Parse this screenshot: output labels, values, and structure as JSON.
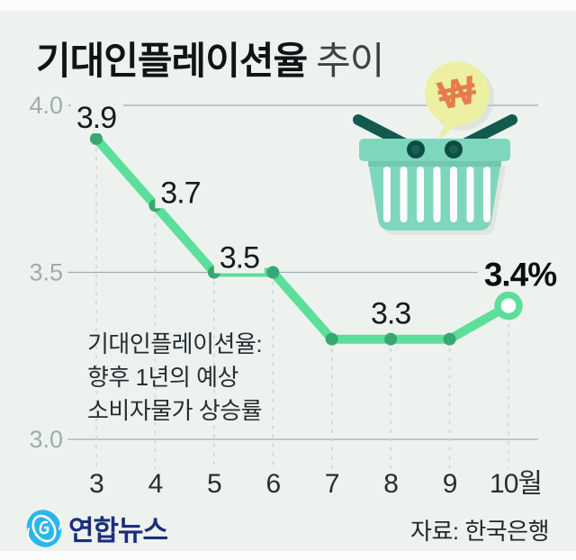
{
  "title": {
    "main": "기대인플레이션율",
    "suffix": "추이"
  },
  "annotation": {
    "line1": "기대인플레이션율:",
    "line2": "향후 1년의 예상",
    "line3": "소비자물가 상승률"
  },
  "illustration": {
    "currency_symbol": "₩"
  },
  "footer": {
    "logo_text": "연합뉴스",
    "source": "자료: 한국은행"
  },
  "chart_data": {
    "type": "line",
    "title": "기대인플레이션율 추이",
    "x_labels": [
      "3",
      "4",
      "5",
      "6",
      "7",
      "8",
      "9",
      "10월"
    ],
    "values": [
      3.9,
      3.7,
      3.5,
      3.5,
      3.3,
      3.3,
      3.3,
      3.4
    ],
    "point_labels": [
      {
        "point": 0,
        "text": "3.9"
      },
      {
        "point": 1,
        "text": "3.7"
      },
      {
        "point": 2,
        "text": "3.5"
      },
      {
        "point": 5,
        "text": "3.3"
      },
      {
        "point": 7,
        "text": "3.4%",
        "emphasis": true
      }
    ],
    "y_ticks": [
      {
        "value": 4.0,
        "label": "4.0"
      },
      {
        "value": 3.5,
        "label": "3.5"
      },
      {
        "value": 3.0,
        "label": "3.0"
      }
    ],
    "ylim": [
      3.0,
      4.0
    ],
    "grid": "horizontal",
    "legend": "none",
    "line_color": "#5BDF9A",
    "dot_color": "#38A873",
    "grid_color": "#9FAFB3",
    "y_tick_color": "#9EACB1",
    "x_tick_color": "#262F33",
    "label_color": "#151C1F",
    "dash_color": "#C9D5D7"
  }
}
